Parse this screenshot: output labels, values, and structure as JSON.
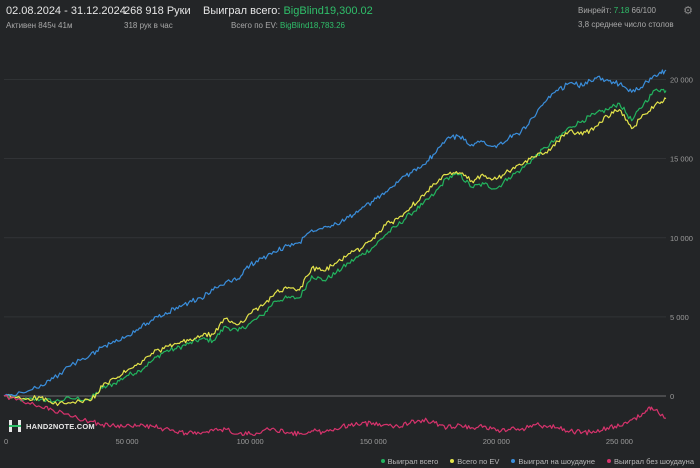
{
  "header": {
    "date_range": "02.08.2024 - 31.12.2024",
    "active": "Активен 845ч 41м",
    "hands": "268 918 Руки",
    "hands_per_hour": "318 рук в час",
    "won_label": "Выиграл всего:",
    "won_value": "BigBlind19,300.02",
    "ev_label": "Всего по EV:",
    "ev_value": "BigBlind18,783.26",
    "winrate_label": "Винрейт:",
    "winrate_value": "7.18",
    "winrate_extra": "66/100",
    "tables": "3,8 среднее число столов"
  },
  "logo": {
    "text": "HAND2NOTE.COM"
  },
  "colors": {
    "background": "#232527",
    "grid": "#3a3c3f",
    "zero_line": "#8a8a8a",
    "accent_green": "#2fbf6a"
  },
  "chart_data": {
    "type": "line",
    "x_ticks": [
      0,
      50000,
      100000,
      150000,
      200000,
      250000
    ],
    "x_tick_labels": [
      "0",
      "50 000",
      "100 000",
      "150 000",
      "200 000",
      "250 000"
    ],
    "y_ticks": [
      0,
      5000,
      10000,
      15000,
      20000
    ],
    "y_tick_labels": [
      "0",
      "5 000",
      "10 000",
      "15 000",
      "20 000"
    ],
    "xlim": [
      0,
      268918
    ],
    "ylim": [
      -2400,
      22500
    ],
    "grid": true,
    "legend_position": "bottom-right",
    "series": [
      {
        "name": "Выиграл всего",
        "color": "#22b35e",
        "points": [
          [
            0,
            0
          ],
          [
            8000,
            -250
          ],
          [
            15000,
            -200
          ],
          [
            20000,
            -350
          ],
          [
            27000,
            -150
          ],
          [
            35000,
            -200
          ],
          [
            40000,
            500
          ],
          [
            45000,
            800
          ],
          [
            50000,
            1300
          ],
          [
            55000,
            1600
          ],
          [
            60000,
            2200
          ],
          [
            65000,
            2800
          ],
          [
            70000,
            3000
          ],
          [
            75000,
            3300
          ],
          [
            80000,
            3600
          ],
          [
            85000,
            3500
          ],
          [
            90000,
            4400
          ],
          [
            95000,
            4100
          ],
          [
            100000,
            4600
          ],
          [
            105000,
            5100
          ],
          [
            110000,
            6000
          ],
          [
            115000,
            6200
          ],
          [
            120000,
            6200
          ],
          [
            125000,
            7600
          ],
          [
            130000,
            7300
          ],
          [
            135000,
            7800
          ],
          [
            140000,
            8400
          ],
          [
            145000,
            8900
          ],
          [
            150000,
            9400
          ],
          [
            155000,
            10200
          ],
          [
            160000,
            10800
          ],
          [
            165000,
            11500
          ],
          [
            170000,
            12100
          ],
          [
            175000,
            12800
          ],
          [
            180000,
            13800
          ],
          [
            185000,
            14000
          ],
          [
            190000,
            13200
          ],
          [
            195000,
            13400
          ],
          [
            200000,
            13100
          ],
          [
            205000,
            13800
          ],
          [
            210000,
            14300
          ],
          [
            215000,
            15000
          ],
          [
            220000,
            15700
          ],
          [
            225000,
            16300
          ],
          [
            230000,
            17000
          ],
          [
            235000,
            17400
          ],
          [
            240000,
            17800
          ],
          [
            245000,
            18100
          ],
          [
            250000,
            18500
          ],
          [
            255000,
            17400
          ],
          [
            260000,
            18500
          ],
          [
            265000,
            19400
          ],
          [
            268918,
            19300
          ]
        ]
      },
      {
        "name": "Всего по EV",
        "color": "#e4e44a",
        "points": [
          [
            0,
            0
          ],
          [
            8000,
            -150
          ],
          [
            15000,
            -100
          ],
          [
            20000,
            -500
          ],
          [
            27000,
            -450
          ],
          [
            35000,
            -300
          ],
          [
            40000,
            600
          ],
          [
            45000,
            1100
          ],
          [
            50000,
            1600
          ],
          [
            55000,
            2000
          ],
          [
            60000,
            2700
          ],
          [
            65000,
            3000
          ],
          [
            70000,
            3300
          ],
          [
            75000,
            3500
          ],
          [
            80000,
            3800
          ],
          [
            85000,
            3900
          ],
          [
            90000,
            4900
          ],
          [
            95000,
            4500
          ],
          [
            100000,
            5200
          ],
          [
            105000,
            5700
          ],
          [
            110000,
            6500
          ],
          [
            115000,
            6800
          ],
          [
            120000,
            6700
          ],
          [
            125000,
            8100
          ],
          [
            130000,
            7900
          ],
          [
            135000,
            8400
          ],
          [
            140000,
            9000
          ],
          [
            145000,
            9300
          ],
          [
            150000,
            10000
          ],
          [
            155000,
            10800
          ],
          [
            160000,
            11200
          ],
          [
            165000,
            11900
          ],
          [
            170000,
            12700
          ],
          [
            175000,
            13400
          ],
          [
            180000,
            14000
          ],
          [
            185000,
            14100
          ],
          [
            190000,
            13600
          ],
          [
            195000,
            13900
          ],
          [
            200000,
            13700
          ],
          [
            205000,
            14200
          ],
          [
            210000,
            14600
          ],
          [
            215000,
            15100
          ],
          [
            220000,
            15400
          ],
          [
            225000,
            16100
          ],
          [
            230000,
            16800
          ],
          [
            235000,
            16500
          ],
          [
            240000,
            17000
          ],
          [
            245000,
            17700
          ],
          [
            250000,
            18100
          ],
          [
            255000,
            16900
          ],
          [
            260000,
            17800
          ],
          [
            265000,
            18500
          ],
          [
            268918,
            18783
          ]
        ]
      },
      {
        "name": "Выиграл на шоудауне",
        "color": "#3a8edb",
        "points": [
          [
            0,
            0
          ],
          [
            8000,
            200
          ],
          [
            15000,
            700
          ],
          [
            20000,
            1100
          ],
          [
            27000,
            1900
          ],
          [
            35000,
            2600
          ],
          [
            40000,
            3100
          ],
          [
            45000,
            3400
          ],
          [
            50000,
            3800
          ],
          [
            55000,
            4300
          ],
          [
            60000,
            4800
          ],
          [
            65000,
            5100
          ],
          [
            70000,
            5600
          ],
          [
            75000,
            5900
          ],
          [
            80000,
            6200
          ],
          [
            85000,
            6700
          ],
          [
            90000,
            7200
          ],
          [
            95000,
            7400
          ],
          [
            100000,
            8300
          ],
          [
            105000,
            8700
          ],
          [
            110000,
            9100
          ],
          [
            115000,
            9500
          ],
          [
            120000,
            9700
          ],
          [
            125000,
            10500
          ],
          [
            130000,
            10700
          ],
          [
            135000,
            10900
          ],
          [
            140000,
            11300
          ],
          [
            145000,
            11800
          ],
          [
            150000,
            12300
          ],
          [
            155000,
            12900
          ],
          [
            160000,
            13500
          ],
          [
            165000,
            14100
          ],
          [
            170000,
            14600
          ],
          [
            175000,
            15300
          ],
          [
            180000,
            16300
          ],
          [
            185000,
            16400
          ],
          [
            190000,
            15900
          ],
          [
            195000,
            16100
          ],
          [
            200000,
            15700
          ],
          [
            205000,
            16300
          ],
          [
            210000,
            16700
          ],
          [
            215000,
            17600
          ],
          [
            220000,
            18600
          ],
          [
            225000,
            19300
          ],
          [
            230000,
            19800
          ],
          [
            235000,
            19600
          ],
          [
            240000,
            20100
          ],
          [
            245000,
            20000
          ],
          [
            250000,
            19700
          ],
          [
            255000,
            19200
          ],
          [
            260000,
            19700
          ],
          [
            265000,
            20200
          ],
          [
            268918,
            20600
          ]
        ]
      },
      {
        "name": "Выиграл без шоудауна",
        "color": "#d6336c",
        "points": [
          [
            0,
            0
          ],
          [
            8000,
            -400
          ],
          [
            15000,
            -700
          ],
          [
            20000,
            -900
          ],
          [
            27000,
            -1300
          ],
          [
            35000,
            -1600
          ],
          [
            40000,
            -1800
          ],
          [
            45000,
            -1900
          ],
          [
            50000,
            -1800
          ],
          [
            55000,
            -1900
          ],
          [
            60000,
            -1900
          ],
          [
            65000,
            -2100
          ],
          [
            70000,
            -2300
          ],
          [
            75000,
            -2300
          ],
          [
            80000,
            -2400
          ],
          [
            85000,
            -2200
          ],
          [
            90000,
            -2100
          ],
          [
            95000,
            -2400
          ],
          [
            100000,
            -2400
          ],
          [
            105000,
            -2200
          ],
          [
            110000,
            -2100
          ],
          [
            115000,
            -2300
          ],
          [
            120000,
            -2400
          ],
          [
            125000,
            -2200
          ],
          [
            130000,
            -2300
          ],
          [
            135000,
            -2100
          ],
          [
            140000,
            -1800
          ],
          [
            145000,
            -1800
          ],
          [
            150000,
            -1700
          ],
          [
            155000,
            -1800
          ],
          [
            160000,
            -1900
          ],
          [
            165000,
            -1700
          ],
          [
            170000,
            -1500
          ],
          [
            175000,
            -1700
          ],
          [
            180000,
            -2000
          ],
          [
            185000,
            -1800
          ],
          [
            190000,
            -2000
          ],
          [
            195000,
            -1900
          ],
          [
            200000,
            -2200
          ],
          [
            205000,
            -2100
          ],
          [
            210000,
            -2100
          ],
          [
            215000,
            -1800
          ],
          [
            220000,
            -1900
          ],
          [
            225000,
            -2000
          ],
          [
            230000,
            -2200
          ],
          [
            235000,
            -2300
          ],
          [
            240000,
            -2300
          ],
          [
            245000,
            -2000
          ],
          [
            250000,
            -1900
          ],
          [
            255000,
            -1500
          ],
          [
            260000,
            -1100
          ],
          [
            263000,
            -700
          ],
          [
            268918,
            -1400
          ]
        ]
      }
    ]
  }
}
